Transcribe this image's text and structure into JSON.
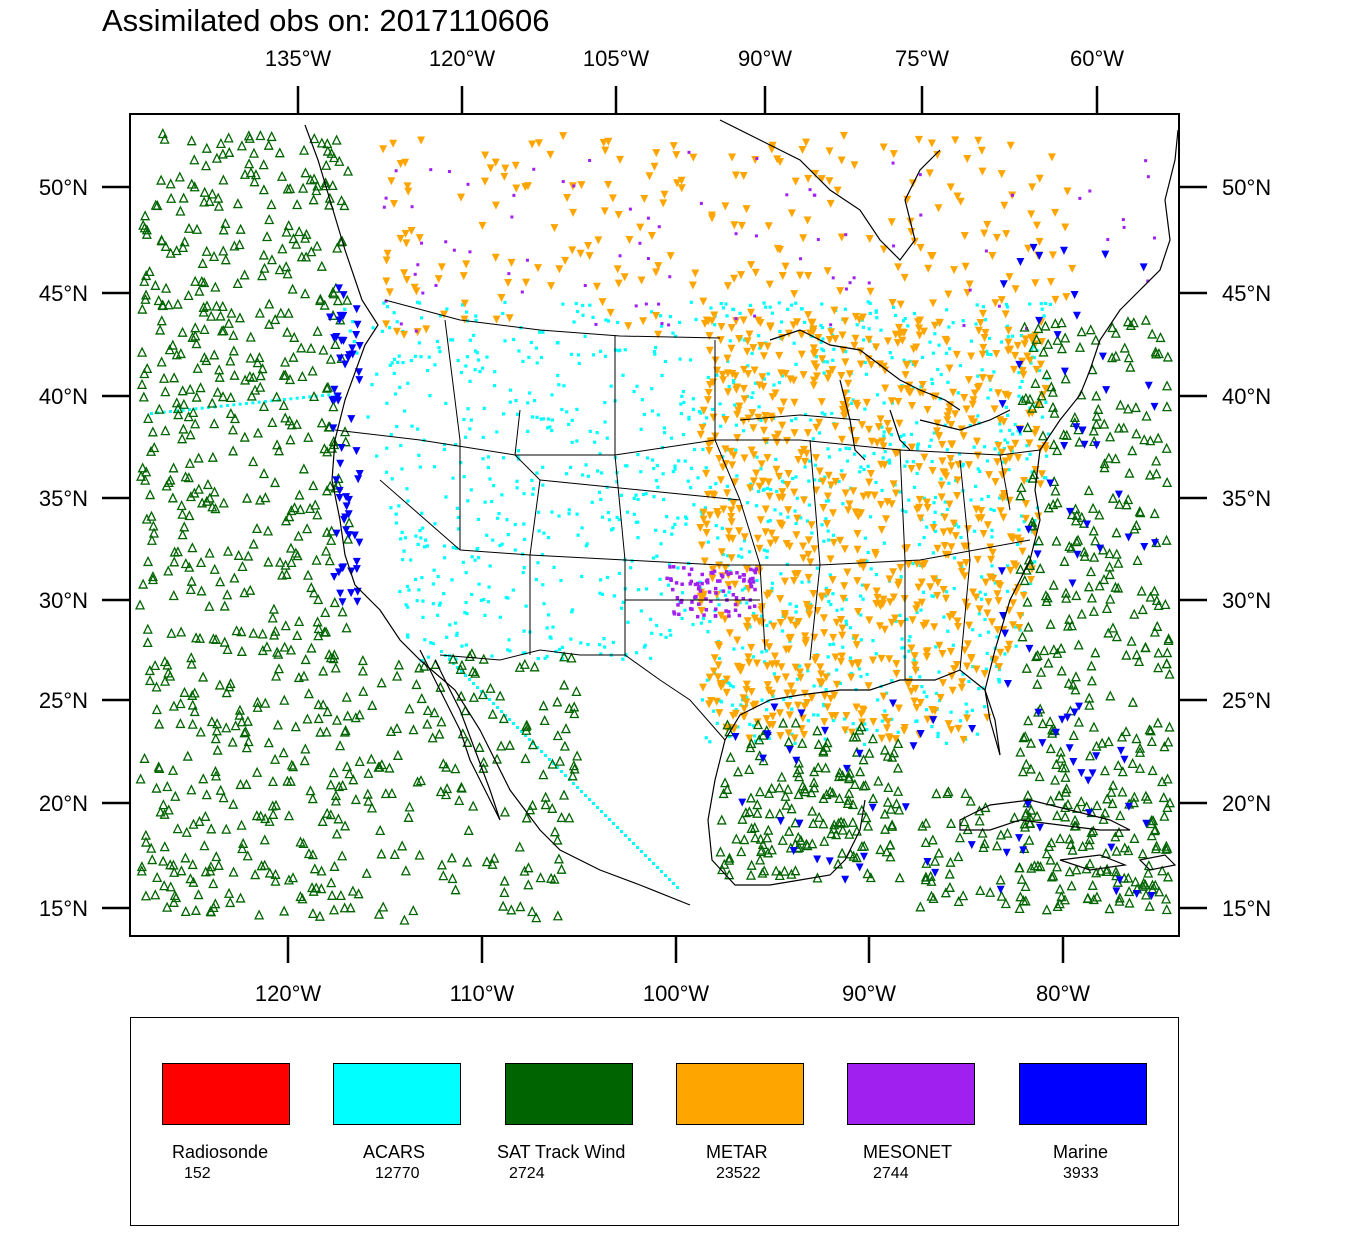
{
  "title": "Assimilated obs on: 2017110606",
  "top_axis_ticks": [
    "135°W",
    "120°W",
    "105°W",
    "90°W",
    "75°W",
    "60°W"
  ],
  "bottom_axis_ticks": [
    "120°W",
    "110°W",
    "100°W",
    "90°W",
    "80°W"
  ],
  "left_axis_ticks": [
    "50°N",
    "45°N",
    "40°N",
    "35°N",
    "30°N",
    "25°N",
    "20°N",
    "15°N"
  ],
  "right_axis_ticks": [
    "50°N",
    "45°N",
    "40°N",
    "35°N",
    "30°N",
    "25°N",
    "20°N",
    "15°N"
  ],
  "colors": {
    "radiosonde": "#ff0000",
    "acars": "#00ffff",
    "sat_track_wind": "#006400",
    "metar": "#ffa500",
    "mesonet": "#a020f0",
    "marine": "#0000ff"
  },
  "legend": [
    {
      "label": "Radiosonde",
      "count": "152",
      "color": "#ff0000"
    },
    {
      "label": "ACARS",
      "count": "12770",
      "color": "#00ffff"
    },
    {
      "label": "SAT Track Wind",
      "count": "2724",
      "color": "#006400"
    },
    {
      "label": "METAR",
      "count": "23522",
      "color": "#ffa500"
    },
    {
      "label": "MESONET",
      "count": "2744",
      "color": "#a020f0"
    },
    {
      "label": "Marine",
      "count": "3933",
      "color": "#0000ff"
    }
  ]
}
